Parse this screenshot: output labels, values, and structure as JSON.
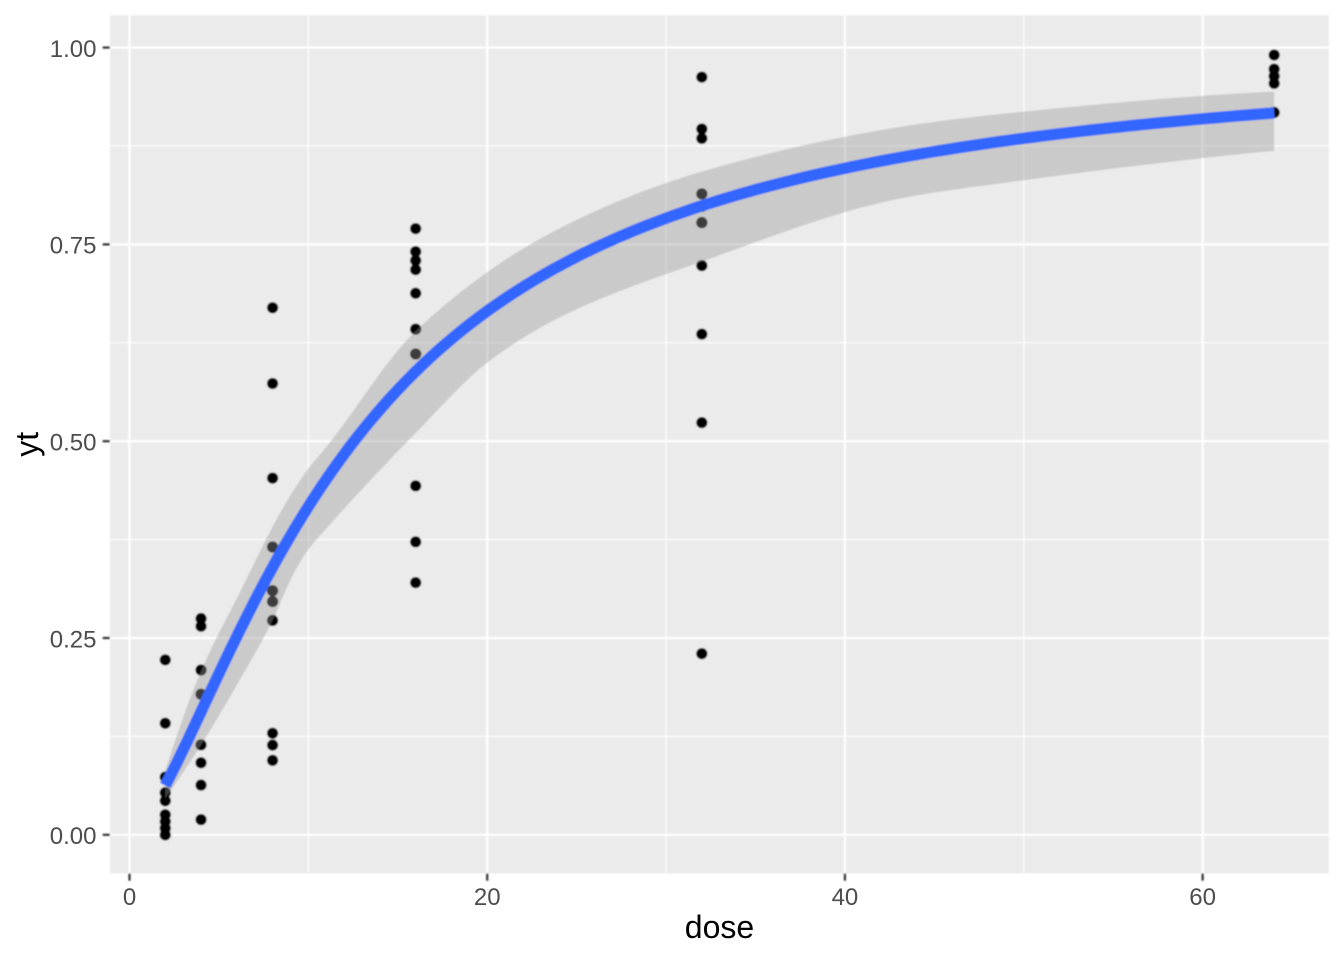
{
  "figure": {
    "description": "ggplot2-style scatter plot of yt versus dose with logistic smooth fit line and confidence ribbon"
  },
  "chart_data": {
    "type": "scatter",
    "title": "",
    "xlabel": "dose",
    "ylabel": "yt",
    "xlim": [
      -1.09,
      67.06
    ],
    "ylim": [
      -0.049,
      1.041
    ],
    "x_major_ticks": [
      0,
      20,
      40,
      60
    ],
    "x_tick_labels": [
      "0",
      "20",
      "40",
      "60"
    ],
    "x_minor_ticks": [
      10,
      30,
      50
    ],
    "y_major_ticks": [
      0.0,
      0.25,
      0.5,
      0.75,
      1.0
    ],
    "y_tick_labels": [
      "0.00",
      "0.25",
      "0.50",
      "0.75",
      "1.00"
    ],
    "y_minor_ticks": [
      0.125,
      0.375,
      0.625,
      0.875
    ],
    "grid": true,
    "legend": "none",
    "series": [
      {
        "name": "observations",
        "type": "scatter",
        "x": [
          2,
          2,
          2,
          2,
          2,
          2,
          2,
          2,
          2,
          4,
          4,
          4,
          4,
          4,
          4,
          4,
          4,
          8,
          8,
          8,
          8,
          8,
          8,
          8,
          8,
          8,
          8,
          16,
          16,
          16,
          16,
          16,
          16,
          16,
          16,
          16,
          16,
          32,
          32,
          32,
          32,
          32,
          32,
          32,
          32,
          32,
          32,
          64,
          64,
          64,
          64,
          64
        ],
        "y": [
          0.2222,
          0.1417,
          0.0733,
          0.0535,
          0.0433,
          0.0255,
          0.017,
          0.0085,
          0.0,
          0.2747,
          0.265,
          0.2094,
          0.1785,
          0.1143,
          0.0916,
          0.0632,
          0.0193,
          0.6695,
          0.5733,
          0.4531,
          0.3656,
          0.31,
          0.2963,
          0.2723,
          0.129,
          0.114,
          0.0945,
          0.77,
          0.7408,
          0.7296,
          0.7179,
          0.6879,
          0.6424,
          0.6108,
          0.4433,
          0.3721,
          0.3204,
          0.9625,
          0.8965,
          0.8847,
          0.8142,
          0.7983,
          0.7777,
          0.723,
          0.636,
          0.5236,
          0.2301,
          0.9905,
          0.9726,
          0.9638,
          0.9545,
          0.9176
        ]
      },
      {
        "name": "smooth-fit",
        "type": "line+ribbon",
        "x": [
          2.001,
          2.517,
          3.034,
          3.551,
          4.067,
          4.584,
          5.101,
          5.617,
          6.134,
          6.651,
          7.167,
          7.684,
          8.201,
          8.717,
          9.234,
          9.751,
          10.267,
          10.784,
          11.301,
          11.817,
          12.334,
          12.851,
          13.367,
          13.884,
          14.401,
          14.917,
          15.434,
          15.951,
          16.467,
          16.984,
          17.501,
          18.017,
          18.534,
          19.051,
          19.567,
          20.084,
          20.601,
          21.117,
          21.634,
          22.151,
          22.667,
          23.184,
          23.701,
          24.217,
          24.734,
          25.251,
          25.767,
          26.284,
          26.801,
          27.317,
          27.834,
          28.351,
          28.867,
          29.384,
          29.901,
          30.417,
          30.934,
          31.451,
          31.967,
          32.484,
          33.001,
          33.518,
          34.034,
          34.551,
          35.068,
          35.584,
          36.101,
          36.618,
          37.134,
          37.651,
          38.168,
          38.684,
          39.201,
          39.718,
          40.234,
          40.751,
          41.268,
          41.784,
          42.301,
          42.818,
          43.334,
          43.851,
          44.368,
          44.884,
          45.401,
          45.918,
          46.434,
          46.951,
          47.468,
          47.984,
          48.501,
          49.018,
          49.534,
          50.051,
          50.568,
          51.084,
          51.601,
          52.118,
          52.634,
          53.151,
          53.668,
          54.184,
          54.701,
          55.218,
          55.734,
          56.251,
          56.768,
          57.284,
          57.801,
          58.318,
          58.834,
          59.351,
          59.868,
          60.384,
          60.901,
          61.418,
          61.934,
          62.451,
          62.968,
          63.484,
          64.001
        ],
        "y": [
          0.0625,
          0.0856,
          0.1097,
          0.1345,
          0.1596,
          0.1847,
          0.2096,
          0.2341,
          0.2581,
          0.2816,
          0.3045,
          0.3266,
          0.3481,
          0.3688,
          0.3888,
          0.408,
          0.4265,
          0.4443,
          0.4614,
          0.4778,
          0.4936,
          0.5087,
          0.5232,
          0.5371,
          0.5505,
          0.5633,
          0.5756,
          0.5875,
          0.5988,
          0.6097,
          0.6202,
          0.6302,
          0.6399,
          0.6492,
          0.6581,
          0.6667,
          0.6749,
          0.6829,
          0.6906,
          0.698,
          0.7051,
          0.7119,
          0.7186,
          0.7249,
          0.7311,
          0.7371,
          0.7428,
          0.7484,
          0.7537,
          0.7589,
          0.7639,
          0.7688,
          0.7735,
          0.778,
          0.7824,
          0.7867,
          0.7908,
          0.7949,
          0.7988,
          0.8025,
          0.8062,
          0.8097,
          0.8132,
          0.8165,
          0.8198,
          0.823,
          0.826,
          0.829,
          0.8319,
          0.8348,
          0.8375,
          0.8402,
          0.8428,
          0.8453,
          0.8478,
          0.8502,
          0.8526,
          0.8549,
          0.8571,
          0.8593,
          0.8614,
          0.8635,
          0.8655,
          0.8675,
          0.8694,
          0.8713,
          0.8731,
          0.8749,
          0.8767,
          0.8784,
          0.8801,
          0.8817,
          0.8833,
          0.8849,
          0.8864,
          0.8879,
          0.8894,
          0.8908,
          0.8922,
          0.8936,
          0.895,
          0.8963,
          0.8976,
          0.8988,
          0.9001,
          0.9013,
          0.9025,
          0.9037,
          0.9048,
          0.9059,
          0.907,
          0.9081,
          0.9092,
          0.9102,
          0.9112,
          0.9122,
          0.9132,
          0.9142,
          0.9151,
          0.9161,
          0.917
        ],
        "ymin": [
          0.0465,
          0.0632,
          0.0805,
          0.0983,
          0.1167,
          0.1356,
          0.1551,
          0.1751,
          0.1954,
          0.2158,
          0.2364,
          0.2581,
          0.2822,
          0.3101,
          0.3346,
          0.3541,
          0.3702,
          0.3836,
          0.3966,
          0.4097,
          0.4226,
          0.4353,
          0.448,
          0.4605,
          0.4728,
          0.4851,
          0.4972,
          0.5093,
          0.5214,
          0.5338,
          0.5462,
          0.5584,
          0.5702,
          0.5814,
          0.5918,
          0.6011,
          0.6098,
          0.618,
          0.6259,
          0.6333,
          0.6403,
          0.6469,
          0.6532,
          0.6591,
          0.6647,
          0.6701,
          0.6753,
          0.6803,
          0.6851,
          0.6897,
          0.6943,
          0.6987,
          0.703,
          0.7073,
          0.7115,
          0.7156,
          0.7197,
          0.7238,
          0.728,
          0.7321,
          0.7364,
          0.7406,
          0.7449,
          0.7491,
          0.7534,
          0.7576,
          0.7618,
          0.7659,
          0.77,
          0.774,
          0.7779,
          0.7817,
          0.7854,
          0.789,
          0.7924,
          0.7957,
          0.7988,
          0.8017,
          0.8044,
          0.807,
          0.8093,
          0.8115,
          0.8135,
          0.8154,
          0.8172,
          0.8189,
          0.8205,
          0.8222,
          0.8237,
          0.8253,
          0.8269,
          0.8285,
          0.8301,
          0.8317,
          0.8332,
          0.8348,
          0.8363,
          0.8379,
          0.8394,
          0.8409,
          0.8424,
          0.8439,
          0.8454,
          0.8468,
          0.8483,
          0.8497,
          0.8511,
          0.8525,
          0.8539,
          0.8552,
          0.8566,
          0.8579,
          0.8592,
          0.8605,
          0.8617,
          0.863,
          0.8642,
          0.8654,
          0.8665,
          0.8677,
          0.8688
        ],
        "ymax": [
          0.0818,
          0.1177,
          0.1516,
          0.183,
          0.2117,
          0.2373,
          0.2609,
          0.2835,
          0.3064,
          0.3301,
          0.3542,
          0.3777,
          0.4001,
          0.4207,
          0.44,
          0.4576,
          0.4729,
          0.4868,
          0.5012,
          0.5167,
          0.5328,
          0.5494,
          0.566,
          0.5824,
          0.5982,
          0.6131,
          0.6268,
          0.6389,
          0.6498,
          0.6604,
          0.6705,
          0.6804,
          0.6898,
          0.6989,
          0.7076,
          0.7161,
          0.7242,
          0.7319,
          0.7394,
          0.7466,
          0.7535,
          0.7601,
          0.7664,
          0.7724,
          0.7783,
          0.7839,
          0.7894,
          0.7947,
          0.7999,
          0.8049,
          0.8096,
          0.8143,
          0.8187,
          0.823,
          0.8272,
          0.8312,
          0.835,
          0.8387,
          0.8422,
          0.8456,
          0.8489,
          0.8522,
          0.8554,
          0.8585,
          0.8615,
          0.8645,
          0.8673,
          0.8702,
          0.8729,
          0.8756,
          0.8782,
          0.8807,
          0.8831,
          0.8855,
          0.8878,
          0.8901,
          0.8922,
          0.8943,
          0.8963,
          0.8983,
          0.9001,
          0.9019,
          0.9036,
          0.9053,
          0.9069,
          0.9084,
          0.9098,
          0.9112,
          0.9126,
          0.9139,
          0.9151,
          0.9163,
          0.9175,
          0.9188,
          0.9199,
          0.9211,
          0.9223,
          0.9235,
          0.9246,
          0.9257,
          0.9268,
          0.9279,
          0.929,
          0.9301,
          0.9311,
          0.9321,
          0.9331,
          0.9341,
          0.935,
          0.936,
          0.9368,
          0.9377,
          0.9385,
          0.9394,
          0.9401,
          0.9409,
          0.9416,
          0.9423,
          0.9429,
          0.9435,
          0.9441
        ]
      }
    ],
    "colors": {
      "background": "#FFFFFF",
      "panel": "#EBEBEB",
      "grid": "#FFFFFF",
      "point": "#000000",
      "smooth_line": "#3366FF",
      "ribbon": "#999999",
      "ribbon_alpha": 0.4,
      "tick": "#333333",
      "tick_label": "#4D4D4D",
      "axis_title": "#000000"
    }
  }
}
